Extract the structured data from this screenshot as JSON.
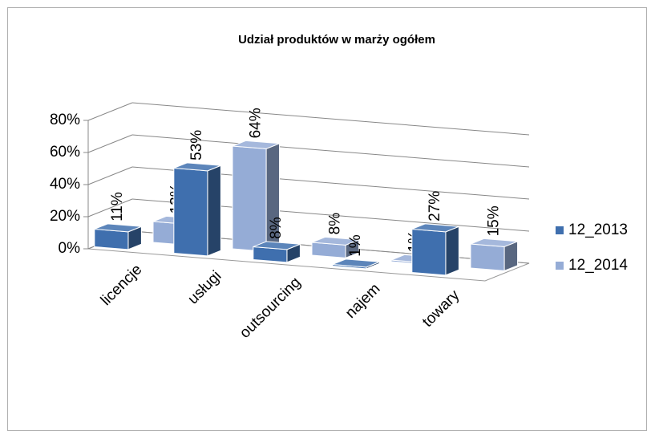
{
  "chart_data": {
    "type": "bar3d",
    "title": "Udział produktów w marży ogółem",
    "categories": [
      "licencje",
      "usługi",
      "outsourcing",
      "najem",
      "towary"
    ],
    "series": [
      {
        "name": "12_2013",
        "color": "#3f6fae",
        "values": [
          11,
          53,
          8,
          1,
          27
        ],
        "value_labels": [
          "11%",
          "53%",
          "8%",
          "1%",
          "27%"
        ]
      },
      {
        "name": "12_2014",
        "color": "#95acd6",
        "values": [
          13,
          64,
          8,
          1,
          15
        ],
        "value_labels": [
          "13%",
          "64%",
          "8%",
          "1%",
          "15%"
        ]
      }
    ],
    "ylim": [
      0,
      80
    ],
    "yticks": [
      {
        "value": 0,
        "label": "0%"
      },
      {
        "value": 20,
        "label": "20%"
      },
      {
        "value": 40,
        "label": "40%"
      },
      {
        "value": 60,
        "label": "60%"
      },
      {
        "value": 80,
        "label": "80%"
      }
    ],
    "grid": true,
    "legend": "right"
  }
}
